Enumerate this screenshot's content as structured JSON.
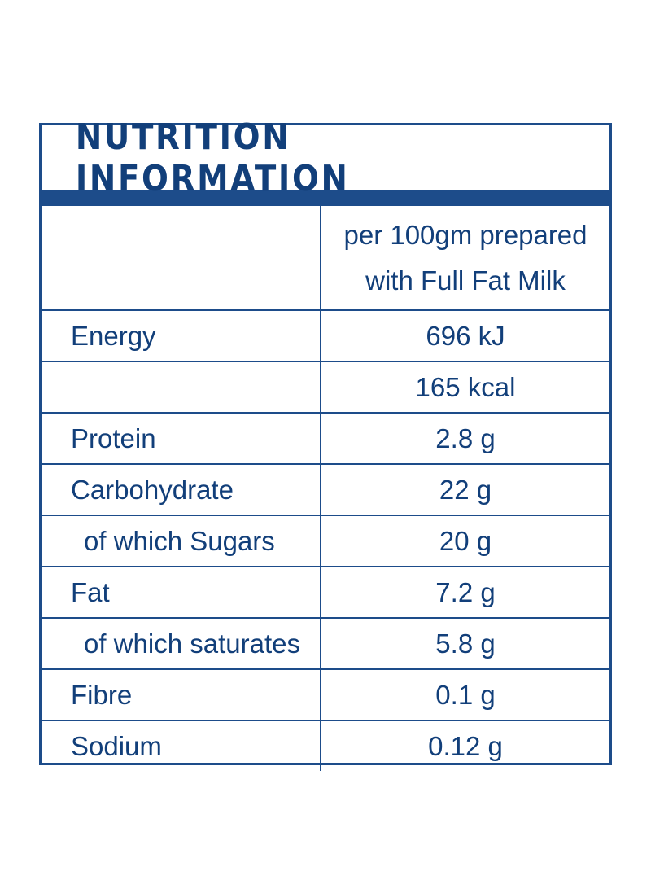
{
  "title": "NUTRITION INFORMATION",
  "header": {
    "label": "",
    "value_line1": "per 100gm prepared",
    "value_line2": "with Full Fat Milk"
  },
  "rows": [
    {
      "label": "Energy",
      "value": "696 kJ",
      "indent": false
    },
    {
      "label": "",
      "value": "165 kcal",
      "indent": false
    },
    {
      "label": "Protein",
      "value": "2.8 g",
      "indent": false
    },
    {
      "label": "Carbohydrate",
      "value": "22 g",
      "indent": false
    },
    {
      "label": "of which Sugars",
      "value": "20 g",
      "indent": true
    },
    {
      "label": "Fat",
      "value": "7.2 g",
      "indent": false
    },
    {
      "label": "of which saturates",
      "value": "5.8 g",
      "indent": true
    },
    {
      "label": "Fibre",
      "value": "0.1 g",
      "indent": false
    },
    {
      "label": "Sodium",
      "value": "0.12 g",
      "indent": false
    }
  ],
  "colors": {
    "brand_blue": "#1d4c8a",
    "text_blue": "#123f7a",
    "background": "#ffffff"
  }
}
